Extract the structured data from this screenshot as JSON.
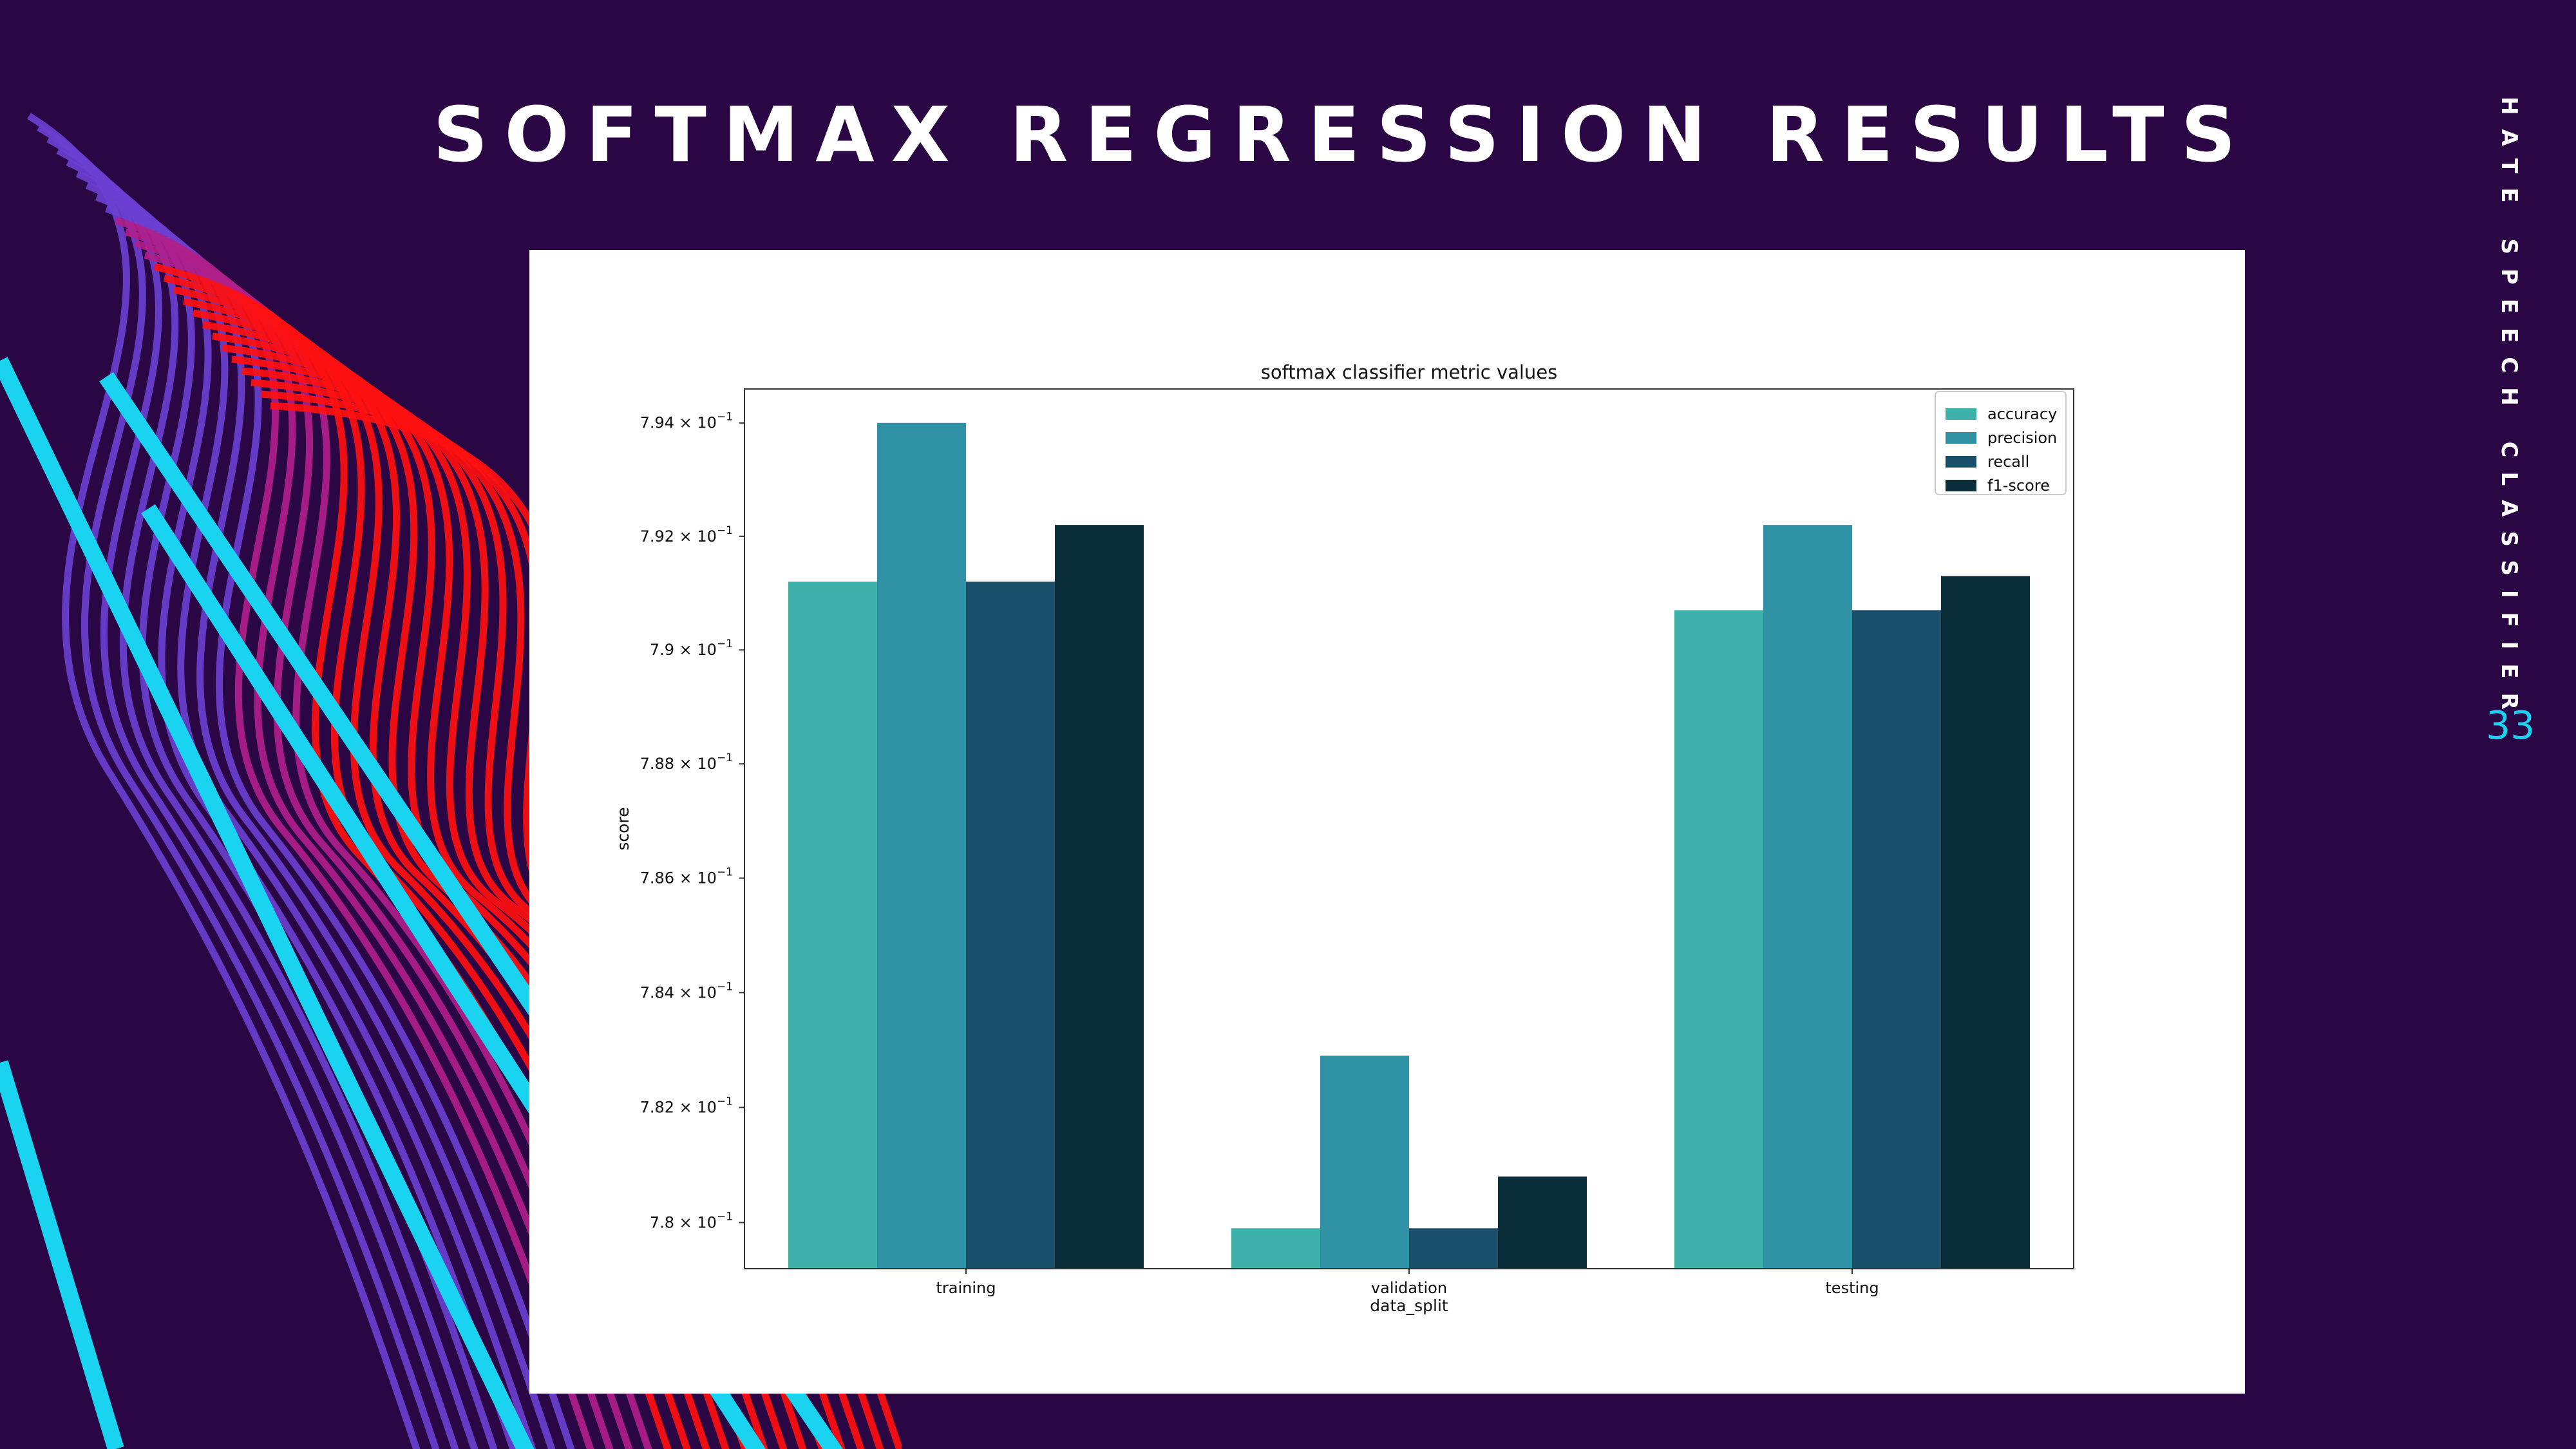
{
  "slide": {
    "title": "SOFTMAX REGRESSION RESULTS",
    "side_label": "HATE SPEECH CLASSIFIER",
    "page_number": "33"
  },
  "theme": {
    "background": "#2b0645",
    "accent_cyan": "#19d3f0",
    "stripe_red": "#ff1010",
    "stripe_purple": "#6a3fd0"
  },
  "chart_data": {
    "type": "bar",
    "title": "softmax classifier metric values",
    "xlabel": "data_split",
    "ylabel": "score",
    "categories": [
      "training",
      "validation",
      "testing"
    ],
    "y_scale": "log",
    "ylim": [
      0.7792,
      0.7946
    ],
    "y_ticks": [
      0.78,
      0.782,
      0.784,
      0.786,
      0.788,
      0.79,
      0.792,
      0.794
    ],
    "y_tick_labels": [
      "7.8 × 10",
      "7.82 × 10",
      "7.84 × 10",
      "7.86 × 10",
      "7.88 × 10",
      "7.9 × 10",
      "7.92 × 10",
      "7.94 × 10"
    ],
    "y_tick_exponent": "−1",
    "legend_position": "upper right",
    "series": [
      {
        "name": "accuracy",
        "color": "#3eb1aa",
        "values": [
          0.7912,
          0.7799,
          0.7907
        ]
      },
      {
        "name": "precision",
        "color": "#2f92a4",
        "values": [
          0.794,
          0.7829,
          0.7922
        ]
      },
      {
        "name": "recall",
        "color": "#1a4f6b",
        "values": [
          0.7912,
          0.7799,
          0.7907
        ]
      },
      {
        "name": "f1-score",
        "color": "#0a2f3a",
        "values": [
          0.7922,
          0.7808,
          0.7913
        ]
      }
    ]
  }
}
